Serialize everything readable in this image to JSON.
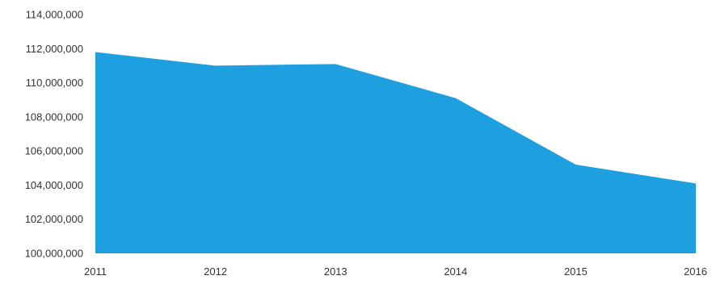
{
  "chart_data": {
    "type": "area",
    "x": [
      "2011",
      "2012",
      "2013",
      "2014",
      "2015",
      "2016"
    ],
    "series": [
      {
        "values": [
          111800000,
          111000000,
          111100000,
          109100000,
          105200000,
          104100000
        ]
      }
    ],
    "ylim": [
      100000000,
      114000000
    ],
    "yticks": [
      100000000,
      102000000,
      104000000,
      106000000,
      108000000,
      110000000,
      112000000,
      114000000
    ],
    "ytick_labels": [
      "100,000,000",
      "102,000,000",
      "104,000,000",
      "106,000,000",
      "108,000,000",
      "110,000,000",
      "112,000,000",
      "114,000,000"
    ],
    "grid": false,
    "legend": "none",
    "area_color": "#1ea0e0"
  }
}
